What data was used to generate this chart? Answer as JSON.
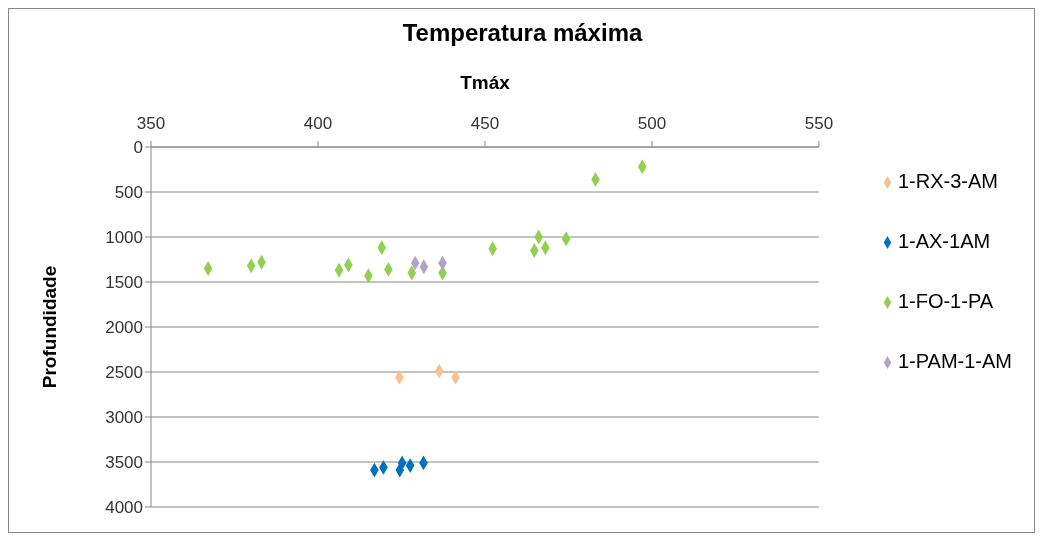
{
  "chart_data": {
    "type": "scatter",
    "title": "Temperatura máxima",
    "xlabel": "Tmáx",
    "ylabel": "Profundidade",
    "xlim": [
      350,
      550
    ],
    "xticks": [
      350,
      400,
      450,
      500,
      550
    ],
    "ylim": [
      4000,
      0
    ],
    "yticks": [
      0,
      500,
      1000,
      1500,
      2000,
      2500,
      3000,
      3500,
      4000
    ],
    "grid": "y",
    "legend": "right",
    "marker": "diamond",
    "series": [
      {
        "name": "1-RX-3-AM",
        "color": "#fac090",
        "x": [
          424.4,
          436.3,
          441.2
        ],
        "values": [
          2560,
          2490,
          2560
        ]
      },
      {
        "name": "1-AX-1AM",
        "color": "#0070c0",
        "x": [
          416.9,
          419.6,
          424.5,
          425.2,
          427.6,
          431.6
        ],
        "values": [
          3590,
          3560,
          3590,
          3510,
          3540,
          3510
        ]
      },
      {
        "name": "1-FO-1-PA",
        "color": "#92d050",
        "x": [
          367.1,
          380,
          383.1,
          406.3,
          409.1,
          415.1,
          419.1,
          421.1,
          428.1,
          437.3,
          452.3,
          464.8,
          466.1,
          468.1,
          474.3,
          483.1,
          497.1
        ],
        "values": [
          1350,
          1320,
          1280,
          1370,
          1310,
          1430,
          1120,
          1360,
          1400,
          1400,
          1130,
          1150,
          1000,
          1120,
          1020,
          360,
          220
        ]
      },
      {
        "name": "1-PAM-1-AM",
        "color": "#b3a2c7",
        "x": [
          429.1,
          431.7,
          437.3
        ],
        "values": [
          1290,
          1330,
          1290
        ]
      }
    ]
  }
}
